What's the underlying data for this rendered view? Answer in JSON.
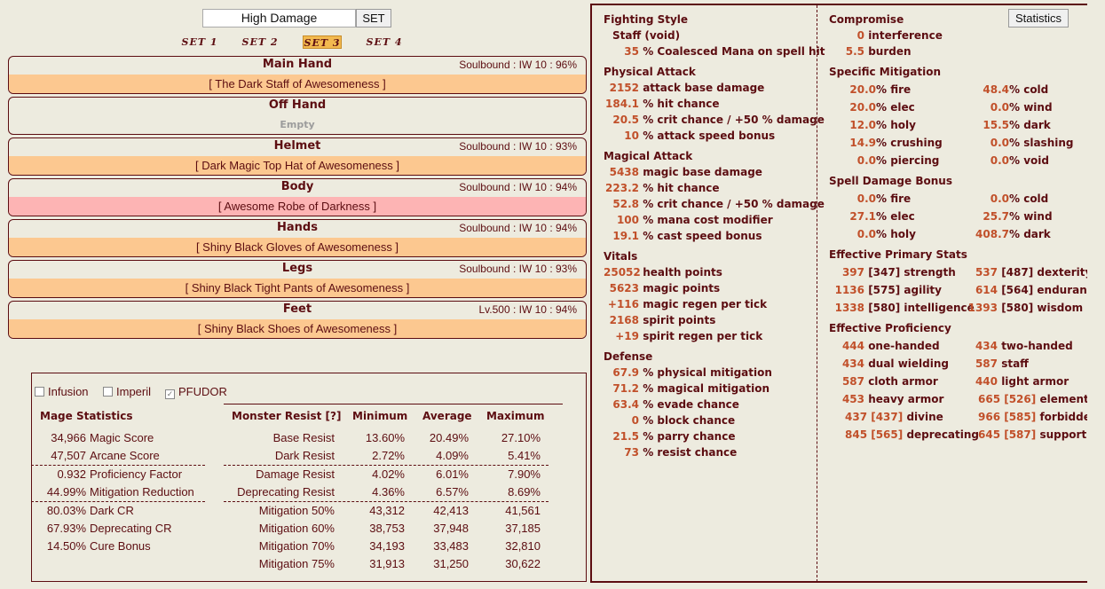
{
  "set_bar": {
    "name_value": "High Damage",
    "set_button": "SET",
    "tabs": [
      "SET 1",
      "SET 2",
      "SET 3",
      "SET 4"
    ],
    "active_tab": "SET 3"
  },
  "slots": [
    {
      "name": "Main Hand",
      "info": "Soulbound : IW 10 : 96%",
      "item": "[ The Dark Staff of Awesomeness ]"
    },
    {
      "name": "Off Hand",
      "info": "",
      "item": "Empty"
    },
    {
      "name": "Helmet",
      "info": "Soulbound : IW 10 : 93%",
      "item": "[ Dark Magic Top Hat of Awesomeness ]"
    },
    {
      "name": "Body",
      "info": "Soulbound : IW 10 : 94%",
      "item": "[ Awesome Robe of Darkness ]"
    },
    {
      "name": "Hands",
      "info": "Soulbound : IW 10 : 94%",
      "item": "[ Shiny Black Gloves of Awesomeness ]"
    },
    {
      "name": "Legs",
      "info": "Soulbound : IW 10 : 93%",
      "item": "[ Shiny Black Tight Pants of Awesomeness ]"
    },
    {
      "name": "Feet",
      "info": "Lv.500 : IW 10 : 94%",
      "item": "[ Shiny Black Shoes of Awesomeness ]"
    }
  ],
  "options": {
    "infusion": "Infusion",
    "imperil": "Imperil",
    "pfudor": "PFUDOR",
    "pfudor_checked": true
  },
  "mage_stats": {
    "title": "Mage Statistics",
    "rows": [
      {
        "value": "34,966",
        "label": "Magic Score"
      },
      {
        "value": "47,507",
        "label": "Arcane Score"
      },
      {
        "value": "0.932",
        "label": "Proficiency Factor"
      },
      {
        "value": "44.99%",
        "label": "Mitigation Reduction"
      },
      {
        "value": "80.03%",
        "label": "Dark CR"
      },
      {
        "value": "67.93%",
        "label": "Deprecating CR"
      },
      {
        "value": "14.50%",
        "label": "Cure Bonus"
      }
    ]
  },
  "monster_resist": {
    "headers": [
      "Monster Resist [?]",
      "Minimum",
      "Average",
      "Maximum"
    ],
    "rows": [
      {
        "label": "Base Resist",
        "min": "13.60%",
        "avg": "20.49%",
        "max": "27.10%"
      },
      {
        "label": "Dark Resist",
        "min": "2.72%",
        "avg": "4.09%",
        "max": "5.41%"
      },
      {
        "label": "Damage Resist",
        "min": "4.02%",
        "avg": "6.01%",
        "max": "7.90%"
      },
      {
        "label": "Deprecating Resist",
        "min": "4.36%",
        "avg": "6.57%",
        "max": "8.69%"
      },
      {
        "label": "Mitigation 50%",
        "min": "43,312",
        "avg": "42,413",
        "max": "41,561"
      },
      {
        "label": "Mitigation 60%",
        "min": "38,753",
        "avg": "37,948",
        "max": "37,185"
      },
      {
        "label": "Mitigation 70%",
        "min": "34,193",
        "avg": "33,483",
        "max": "32,810"
      },
      {
        "label": "Mitigation 75%",
        "min": "31,913",
        "avg": "31,250",
        "max": "30,622"
      }
    ]
  },
  "left_stats": {
    "fighting_style": {
      "title": "Fighting Style",
      "style": "Staff (void)",
      "line_value": "35",
      "line_label": "% Coalesced Mana on spell hit"
    },
    "physical": {
      "title": "Physical Attack",
      "rows": [
        {
          "v": "2152",
          "l": "attack base damage"
        },
        {
          "v": "184.1",
          "l": "% hit chance"
        },
        {
          "v": "20.5",
          "l": "% crit chance / +50 % damage"
        },
        {
          "v": "10",
          "l": "% attack speed bonus"
        }
      ]
    },
    "magical": {
      "title": "Magical Attack",
      "rows": [
        {
          "v": "5438",
          "l": "magic base damage"
        },
        {
          "v": "223.2",
          "l": "% hit chance"
        },
        {
          "v": "52.8",
          "l": "% crit chance / +50 % damage"
        },
        {
          "v": "100",
          "l": "% mana cost modifier"
        },
        {
          "v": "19.1",
          "l": "% cast speed bonus"
        }
      ]
    },
    "vitals": {
      "title": "Vitals",
      "rows": [
        {
          "v": "25052",
          "l": "health points"
        },
        {
          "v": "5623",
          "l": "magic points"
        },
        {
          "v": "+116",
          "l": "magic regen per tick"
        },
        {
          "v": "2168",
          "l": "spirit points"
        },
        {
          "v": "+19",
          "l": "spirit regen per tick"
        }
      ]
    },
    "defense": {
      "title": "Defense",
      "rows": [
        {
          "v": "67.9",
          "l": "% physical mitigation"
        },
        {
          "v": "71.2",
          "l": "% magical mitigation"
        },
        {
          "v": "63.4",
          "l": "% evade chance"
        },
        {
          "v": "0",
          "l": "% block chance"
        },
        {
          "v": "21.5",
          "l": "% parry chance"
        },
        {
          "v": "73",
          "l": "% resist chance"
        }
      ]
    }
  },
  "right_stats": {
    "statistics_button": "Statistics",
    "compromise": {
      "title": "Compromise",
      "rows": [
        {
          "v": "0",
          "l": "interference"
        },
        {
          "v": "5.5",
          "l": "burden"
        }
      ]
    },
    "mitigation": {
      "title": "Specific Mitigation",
      "rows": [
        {
          "v": "20.0",
          "l": "% fire"
        },
        {
          "v": "48.4",
          "l": "% cold"
        },
        {
          "v": "20.0",
          "l": "% elec"
        },
        {
          "v": "0.0",
          "l": "% wind"
        },
        {
          "v": "12.0",
          "l": "% holy"
        },
        {
          "v": "15.5",
          "l": "% dark"
        },
        {
          "v": "14.9",
          "l": "% crushing"
        },
        {
          "v": "0.0",
          "l": "% slashing"
        },
        {
          "v": "0.0",
          "l": "% piercing"
        },
        {
          "v": "0.0",
          "l": "% void"
        }
      ]
    },
    "spell_bonus": {
      "title": "Spell Damage Bonus",
      "rows": [
        {
          "v": "0.0",
          "l": "% fire"
        },
        {
          "v": "0.0",
          "l": "% cold"
        },
        {
          "v": "27.1",
          "l": "% elec"
        },
        {
          "v": "25.7",
          "l": "% wind"
        },
        {
          "v": "0.0",
          "l": "% holy"
        },
        {
          "v": "408.7",
          "l": "% dark"
        }
      ]
    },
    "primary": {
      "title": "Effective Primary Stats",
      "rows": [
        {
          "v": "397",
          "b": "[347]",
          "l": "strength"
        },
        {
          "v": "537",
          "b": "[487]",
          "l": "dexterity"
        },
        {
          "v": "1136",
          "b": "[575]",
          "l": "agility"
        },
        {
          "v": "614",
          "b": "[564]",
          "l": "endurance"
        },
        {
          "v": "1338",
          "b": "[580]",
          "l": "intelligence"
        },
        {
          "v": "1393",
          "b": "[580]",
          "l": "wisdom"
        }
      ]
    },
    "proficiency": {
      "title": "Effective Proficiency",
      "rows": [
        {
          "v": "444",
          "l": "one-handed"
        },
        {
          "v": "434",
          "l": "two-handed"
        },
        {
          "v": "434",
          "l": "dual wielding"
        },
        {
          "v": "587",
          "l": "staff"
        },
        {
          "v": "587",
          "l": "cloth armor"
        },
        {
          "v": "440",
          "l": "light armor"
        },
        {
          "v": "453",
          "l": "heavy armor"
        },
        {
          "v": "665 [526]",
          "l": "elemental"
        },
        {
          "v": "437 [437]",
          "l": "divine"
        },
        {
          "v": "966 [585]",
          "l": "forbidden"
        },
        {
          "v": "845 [565]",
          "l": "deprecating"
        },
        {
          "v": "645 [587]",
          "l": "supportive"
        }
      ]
    }
  }
}
